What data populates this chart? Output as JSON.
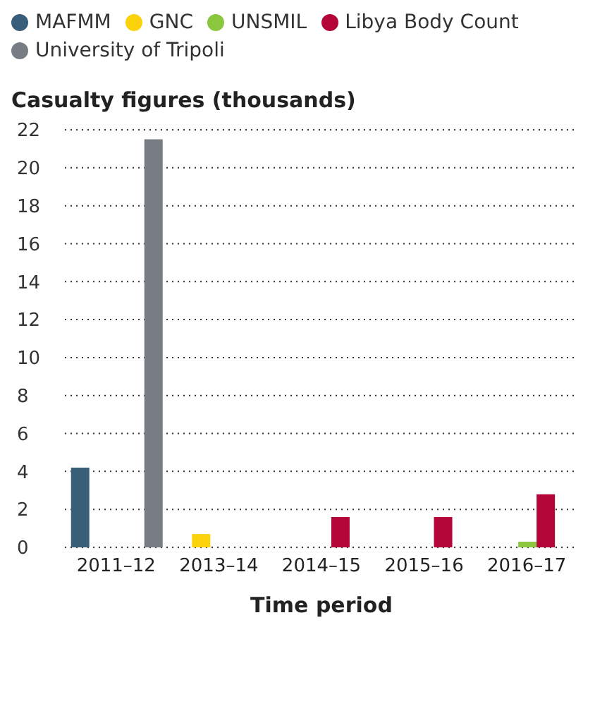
{
  "chart_data": {
    "type": "bar",
    "ylabel": "Casualty figures (thousands)",
    "xlabel": "Time period",
    "categories": [
      "2011–12",
      "2013–14",
      "2014–15",
      "2015–16",
      "2016–17"
    ],
    "series": [
      {
        "name": "MAFMM",
        "color": "#385e7a",
        "values": [
          4.2,
          null,
          null,
          null,
          null
        ]
      },
      {
        "name": "GNC",
        "color": "#fcd20a",
        "values": [
          null,
          0.7,
          null,
          null,
          null
        ]
      },
      {
        "name": "UNSMIL",
        "color": "#8cc63f",
        "values": [
          null,
          null,
          null,
          null,
          0.3
        ]
      },
      {
        "name": "Libya Body Count",
        "color": "#b30537",
        "values": [
          null,
          null,
          1.6,
          1.6,
          2.8
        ]
      },
      {
        "name": "University of Tripoli",
        "color": "#787c84",
        "values": [
          21.5,
          null,
          null,
          null,
          null
        ]
      }
    ],
    "ylim": [
      0,
      22
    ],
    "yticks": [
      0,
      2,
      4,
      6,
      8,
      10,
      12,
      14,
      16,
      18,
      20,
      22
    ],
    "grid": "y",
    "legend": "top left"
  }
}
